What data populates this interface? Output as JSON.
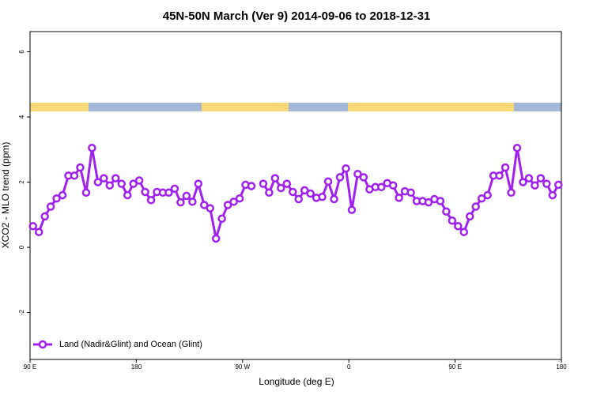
{
  "chart_data": {
    "type": "line",
    "title": "45N-50N March (Ver 9)   2014-09-06 to 2018-12-31",
    "x_label": "Longitude (deg E)",
    "y_label": "XCO2 - MLO trend (ppm)",
    "x": [
      92.5,
      97.5,
      102.5,
      107.5,
      112.5,
      117.5,
      122.5,
      127.5,
      132.5,
      137.5,
      142.5,
      147.5,
      152.5,
      157.5,
      162.5,
      167.5,
      172.5,
      177.5,
      182.5,
      187.5,
      192.5,
      197.5,
      202.5,
      207.5,
      212.5,
      217.5,
      222.5,
      227.5,
      232.5,
      237.5,
      242.5,
      247.5,
      252.5,
      257.5,
      262.5,
      267.5,
      272.5,
      277.5,
      282.5,
      287.5,
      292.5,
      297.5,
      302.5,
      307.5,
      312.5,
      317.5,
      322.5,
      327.5,
      332.5,
      337.5,
      342.5,
      347.5,
      352.5,
      357.5,
      362.5,
      367.5,
      372.5,
      377.5,
      382.5,
      387.5,
      392.5,
      397.5,
      402.5,
      407.5,
      412.5,
      417.5,
      422.5,
      427.5,
      432.5,
      437.5,
      442.5,
      447.5,
      452.5,
      457.5,
      462.5,
      467.5,
      472.5,
      477.5,
      482.5,
      487.5,
      492.5,
      497.5,
      502.5,
      507.5,
      512.5,
      517.5,
      522.5,
      527.5,
      532.5,
      537.5
    ],
    "series": [
      {
        "name": "Land (Nadir&Glint) and Ocean (Glint)",
        "color": "#a020f0",
        "values": [
          0.65,
          0.47,
          0.95,
          1.25,
          1.5,
          1.6,
          2.2,
          2.2,
          2.45,
          1.68,
          3.05,
          2.0,
          2.12,
          1.9,
          2.12,
          1.95,
          1.6,
          1.95,
          2.05,
          1.7,
          1.45,
          1.7,
          1.68,
          1.68,
          1.8,
          1.38,
          1.58,
          1.4,
          1.95,
          1.3,
          1.2,
          0.27,
          0.88,
          1.3,
          1.4,
          1.5,
          1.92,
          1.88,
          null,
          1.95,
          1.68,
          2.12,
          1.82,
          1.95,
          1.7,
          1.48,
          1.75,
          1.65,
          1.52,
          1.55,
          2.02,
          1.48,
          2.15,
          2.42,
          1.15,
          2.25,
          2.15,
          1.78,
          1.85,
          1.85,
          1.97,
          1.9,
          1.52,
          1.72,
          1.68,
          1.42,
          1.42,
          1.38,
          1.48,
          1.42,
          1.1,
          0.82,
          0.65,
          0.47,
          0.95,
          1.25,
          1.5,
          1.6,
          2.2,
          2.2,
          2.45,
          1.68,
          3.05,
          2.0,
          2.12,
          1.9,
          2.12,
          1.95,
          1.6,
          1.92
        ]
      }
    ],
    "xlim": [
      90,
      540
    ],
    "xticks": [
      {
        "value": 90,
        "label": "90 E"
      },
      180,
      {
        "value": 270,
        "label": "90 W"
      },
      {
        "value": 360,
        "label": "0"
      },
      {
        "value": 450,
        "label": "90 E"
      },
      {
        "value": 540,
        "label": "180"
      }
    ],
    "ylim": [
      -3.44,
      6.62
    ],
    "yticks": [
      -2,
      0,
      2,
      4,
      6
    ],
    "legend": "bottom-left"
  }
}
